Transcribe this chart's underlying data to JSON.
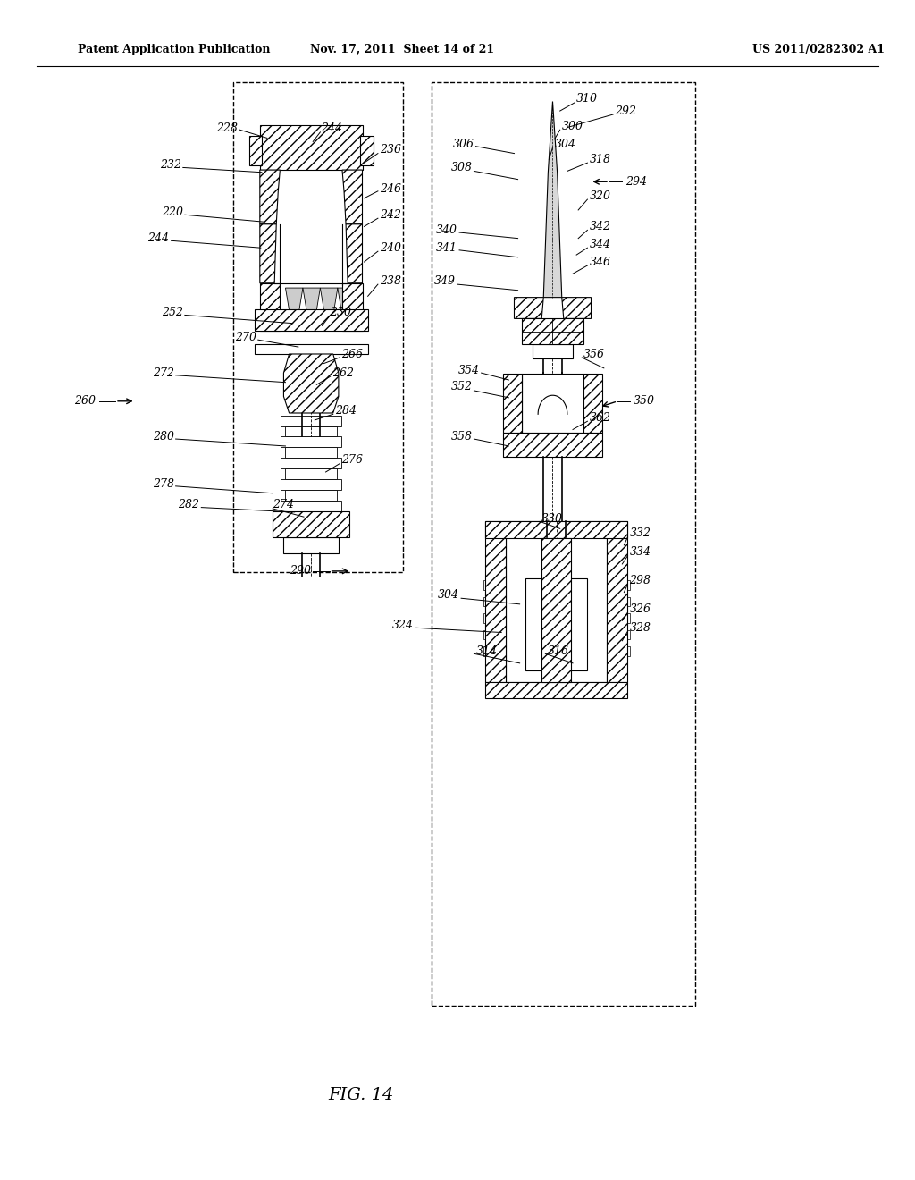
{
  "header_left": "Patent Application Publication",
  "header_center": "Nov. 17, 2011  Sheet 14 of 21",
  "header_right": "US 2011/0282302 A1",
  "figure_label": "FIG. 14",
  "background": "#ffffff",
  "line_color": "#000000",
  "fs_label": 9,
  "fs_header": 9,
  "fs_fig": 14
}
